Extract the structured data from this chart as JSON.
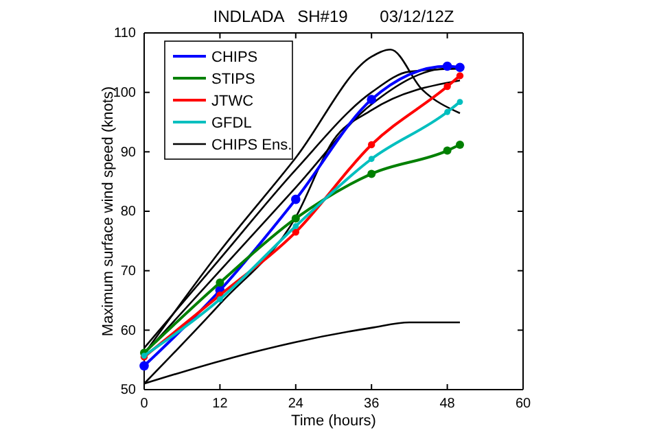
{
  "chart_data": {
    "type": "line",
    "title": "INDLADA   SH#19       03/12/12Z",
    "xlabel": "Time (hours)",
    "ylabel": "Maximum surface wind speed (knots)",
    "xlim": [
      0,
      60
    ],
    "xticks": [
      0,
      12,
      24,
      36,
      48,
      60
    ],
    "ylim": [
      50,
      110
    ],
    "yticks": [
      50,
      60,
      70,
      80,
      90,
      100,
      110
    ],
    "grid": false,
    "legend": "top left",
    "marker": "circle",
    "line_style": "solid",
    "series": [
      {
        "name": "CHIPS Ens.",
        "color": "#000000",
        "marker": "none",
        "x": [
          0,
          12,
          24,
          36,
          39,
          44,
          50
        ],
        "values": [
          56,
          73.3,
          89,
          106,
          107.2,
          100.5,
          96.5
        ]
      },
      {
        "color": "#000000",
        "marker": "none",
        "x": [
          0,
          12,
          24,
          36,
          42,
          50
        ],
        "values": [
          57,
          72,
          87,
          100,
          103.5,
          104
        ]
      },
      {
        "color": "#000000",
        "marker": "none",
        "x": [
          0,
          12,
          24,
          36,
          48,
          50
        ],
        "values": [
          56,
          70,
          84,
          98,
          104,
          104
        ]
      },
      {
        "color": "#000000",
        "marker": "none",
        "x": [
          0,
          12,
          24,
          30,
          36,
          50
        ],
        "values": [
          51,
          64.4,
          79,
          92,
          97,
          102
        ]
      },
      {
        "color": "#000000",
        "marker": "none",
        "x": [
          0,
          12,
          24,
          36,
          42,
          50
        ],
        "values": [
          51,
          54.8,
          58,
          60.4,
          61.3,
          61.3
        ]
      },
      {
        "name": "CHIPS",
        "color": "#0000ff",
        "x": [
          0,
          12,
          24,
          36,
          48,
          50
        ],
        "values": [
          54,
          66.7,
          82,
          98.8,
          104.4,
          104.2
        ]
      },
      {
        "name": "STIPS",
        "color": "#008000",
        "x": [
          0,
          12,
          24,
          36,
          48,
          50
        ],
        "values": [
          56.2,
          68,
          78.8,
          86.3,
          90.2,
          91.2
        ]
      },
      {
        "name": "JTWC",
        "color": "#ff0000",
        "x": [
          0,
          12,
          24,
          36,
          48,
          50
        ],
        "values": [
          55.5,
          65.9,
          76.5,
          91.2,
          101,
          102.8
        ]
      },
      {
        "name": "GFDL",
        "color": "#00bfbf",
        "x": [
          0,
          12,
          24,
          36,
          48,
          50
        ],
        "values": [
          55.7,
          65.2,
          77.5,
          88.8,
          96.7,
          98.4
        ]
      }
    ]
  }
}
